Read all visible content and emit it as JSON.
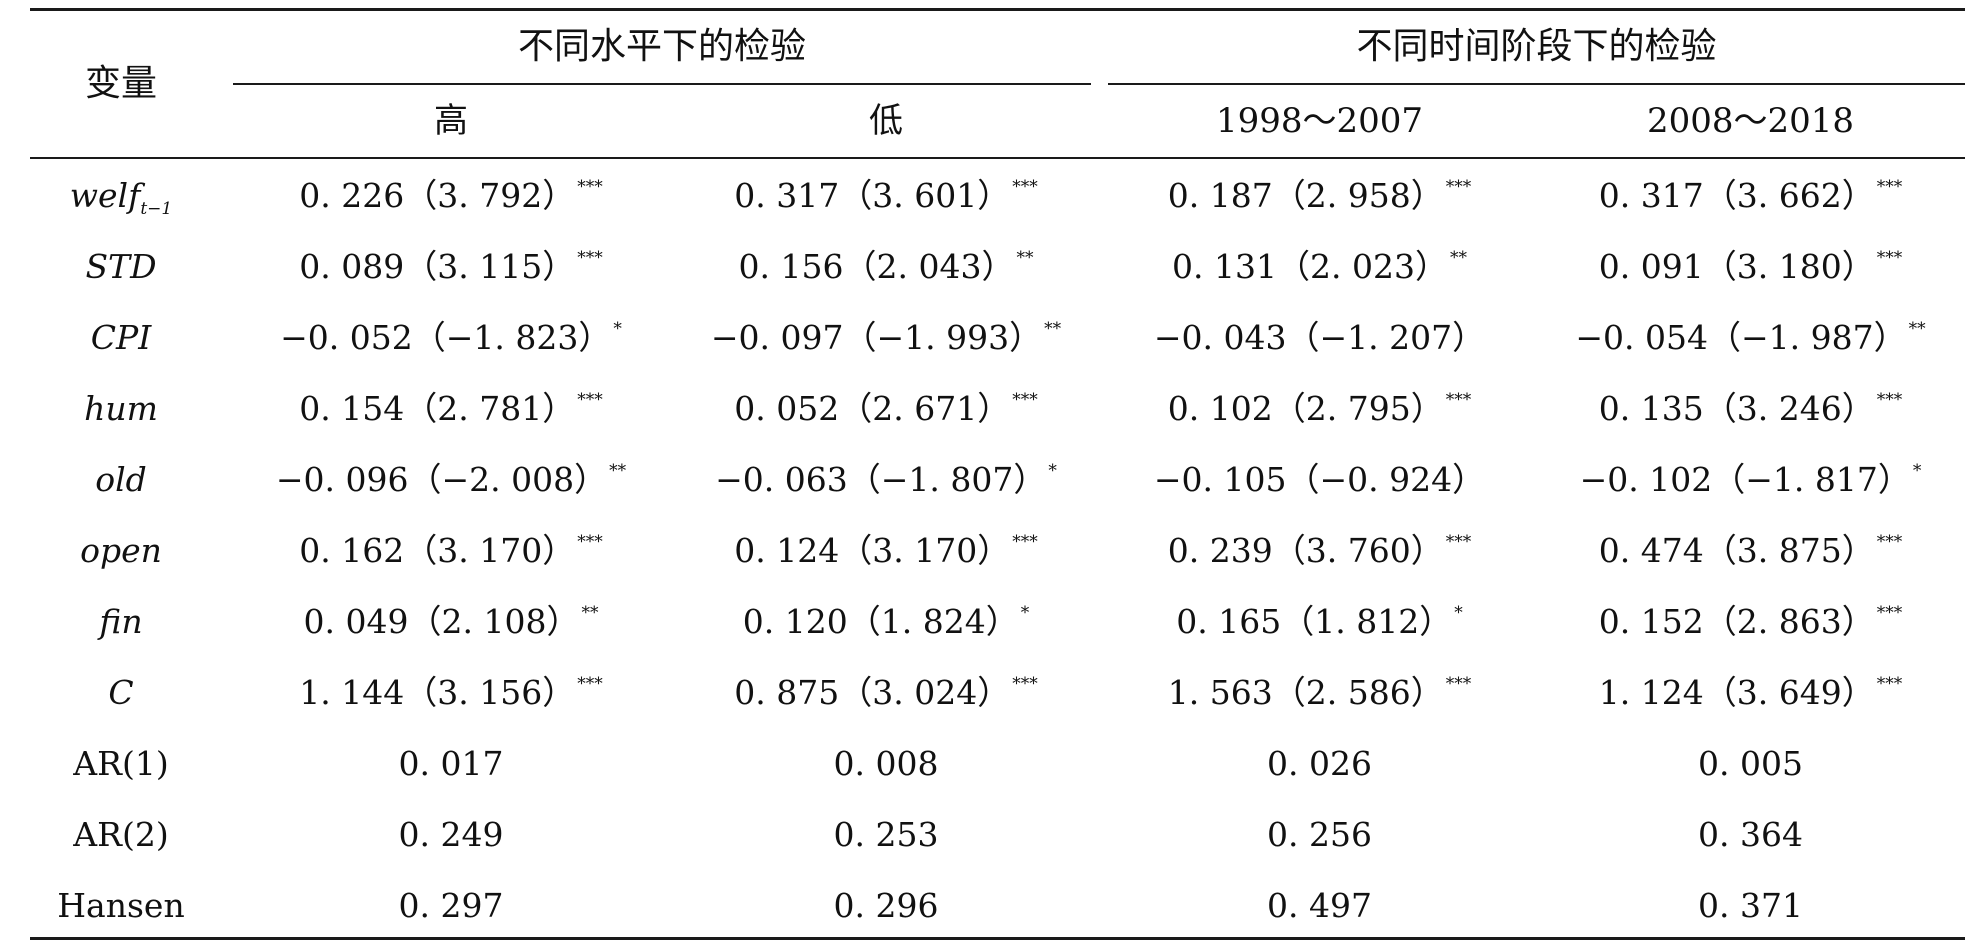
{
  "table": {
    "header": {
      "variable_label": "变量",
      "group1_label": "不同水平下的检验",
      "group2_label": "不同时间阶段下的检验",
      "columns": [
        "高",
        "低",
        "1998～2007",
        "2008～2018"
      ]
    },
    "rows": [
      {
        "label": "welf",
        "label_sub": "t−1",
        "cells": [
          {
            "coef": "0. 226",
            "t": "（3. 792）",
            "sig": "***"
          },
          {
            "coef": "0. 317",
            "t": "（3. 601）",
            "sig": "***"
          },
          {
            "coef": "0. 187",
            "t": "（2. 958）",
            "sig": "***"
          },
          {
            "coef": "0. 317",
            "t": "（3. 662）",
            "sig": "***"
          }
        ]
      },
      {
        "label": "STD",
        "cells": [
          {
            "coef": "0. 089",
            "t": "（3. 115）",
            "sig": "***"
          },
          {
            "coef": "0. 156",
            "t": "（2. 043）",
            "sig": "**"
          },
          {
            "coef": "0. 131",
            "t": "（2. 023）",
            "sig": "**"
          },
          {
            "coef": "0. 091",
            "t": "（3. 180）",
            "sig": "***"
          }
        ]
      },
      {
        "label": "CPI",
        "cells": [
          {
            "coef": "−0. 052",
            "t": "（−1. 823）",
            "sig": "*"
          },
          {
            "coef": "−0. 097",
            "t": "（−1. 993）",
            "sig": "**"
          },
          {
            "coef": "−0. 043",
            "t": "（−1. 207）",
            "sig": ""
          },
          {
            "coef": "−0. 054",
            "t": "（−1. 987）",
            "sig": "**"
          }
        ]
      },
      {
        "label": "hum",
        "cells": [
          {
            "coef": "0. 154",
            "t": "（2. 781）",
            "sig": "***"
          },
          {
            "coef": "0. 052",
            "t": "（2. 671）",
            "sig": "***"
          },
          {
            "coef": "0. 102",
            "t": "（2. 795）",
            "sig": "***"
          },
          {
            "coef": "0. 135",
            "t": "（3. 246）",
            "sig": "***"
          }
        ]
      },
      {
        "label": "old",
        "cells": [
          {
            "coef": "−0. 096",
            "t": "（−2. 008）",
            "sig": "**"
          },
          {
            "coef": "−0. 063",
            "t": "（−1. 807）",
            "sig": "*"
          },
          {
            "coef": "−0. 105",
            "t": "（−0. 924）",
            "sig": ""
          },
          {
            "coef": "−0. 102",
            "t": "（−1. 817）",
            "sig": "*"
          }
        ]
      },
      {
        "label": "open",
        "cells": [
          {
            "coef": "0. 162",
            "t": "（3. 170）",
            "sig": "***"
          },
          {
            "coef": "0. 124",
            "t": "（3. 170）",
            "sig": "***"
          },
          {
            "coef": "0. 239",
            "t": "（3. 760）",
            "sig": "***"
          },
          {
            "coef": "0. 474",
            "t": "（3. 875）",
            "sig": "***"
          }
        ]
      },
      {
        "label": "fin",
        "cells": [
          {
            "coef": "0. 049",
            "t": "（2. 108）",
            "sig": "**"
          },
          {
            "coef": "0. 120",
            "t": "（1. 824）",
            "sig": "*"
          },
          {
            "coef": "0. 165",
            "t": "（1. 812）",
            "sig": "*"
          },
          {
            "coef": "0. 152",
            "t": "（2. 863）",
            "sig": "***"
          }
        ]
      },
      {
        "label": "C",
        "cells": [
          {
            "coef": "1. 144",
            "t": "（3. 156）",
            "sig": "***"
          },
          {
            "coef": "0. 875",
            "t": "（3. 024）",
            "sig": "***"
          },
          {
            "coef": "1. 563",
            "t": "（2. 586）",
            "sig": "***"
          },
          {
            "coef": "1. 124",
            "t": "（3. 649）",
            "sig": "***"
          }
        ]
      }
    ],
    "stat_rows": [
      {
        "label": "AR(1)",
        "values": [
          "0. 017",
          "0. 008",
          "0. 026",
          "0. 005"
        ]
      },
      {
        "label": "AR(2)",
        "values": [
          "0. 249",
          "0. 253",
          "0. 256",
          "0. 364"
        ]
      },
      {
        "label": "Hansen",
        "values": [
          "0. 297",
          "0. 296",
          "0. 497",
          "0. 371"
        ]
      }
    ]
  }
}
